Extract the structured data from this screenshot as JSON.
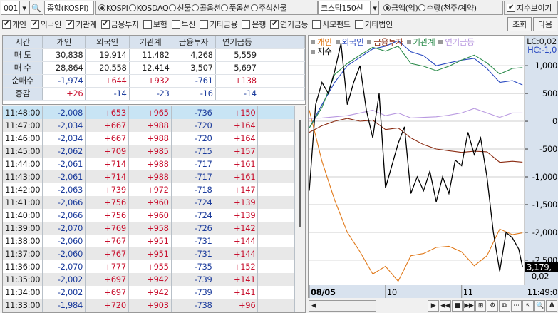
{
  "toolbar": {
    "code": "001",
    "market_name": "종합(KOSPI)",
    "markets": [
      {
        "label": "KOSPI",
        "selected": true
      },
      {
        "label": "KOSDAQ",
        "selected": false
      },
      {
        "label": "선물",
        "selected": false
      },
      {
        "label": "콜옵션",
        "selected": false
      },
      {
        "label": "풋옵션",
        "selected": false
      },
      {
        "label": "주식선물",
        "selected": false
      }
    ],
    "combo_value": "코스닥150선",
    "units": [
      {
        "label": "금액(억)",
        "selected": true
      },
      {
        "label": "수량(천주/계약)",
        "selected": false
      }
    ],
    "show_index": {
      "label": "지수보이기",
      "checked": true
    }
  },
  "filters": [
    {
      "label": "개인",
      "checked": true
    },
    {
      "label": "외국인",
      "checked": true
    },
    {
      "label": "기관계",
      "checked": true
    },
    {
      "label": "금융투자",
      "checked": true
    },
    {
      "label": "보험",
      "checked": false
    },
    {
      "label": "투신",
      "checked": false
    },
    {
      "label": "기타금융",
      "checked": false
    },
    {
      "label": "은행",
      "checked": false
    },
    {
      "label": "연기금등",
      "checked": true
    },
    {
      "label": "사모펀드",
      "checked": false
    },
    {
      "label": "기타법인",
      "checked": false
    }
  ],
  "buttons": {
    "query": "조회",
    "next": "다음"
  },
  "summary": {
    "headers": [
      "시간",
      "개인",
      "외국인",
      "기관계",
      "금융투자",
      "연기금등"
    ],
    "rows": [
      [
        "매 도",
        "30,838",
        "19,914",
        "11,482",
        "4,268",
        "5,559"
      ],
      [
        "매 수",
        "28,864",
        "20,558",
        "12,414",
        "3,507",
        "5,697"
      ],
      [
        "순매수",
        "-1,974",
        "+644",
        "+932",
        "-761",
        "+138"
      ],
      [
        "증감",
        "+26",
        "-14",
        "-23",
        "-16",
        "-14"
      ]
    ]
  },
  "timeseries": [
    [
      "11:48:00",
      "-2,008",
      "+653",
      "+965",
      "-736",
      "+150"
    ],
    [
      "11:47:00",
      "-2,034",
      "+667",
      "+988",
      "-720",
      "+164"
    ],
    [
      "11:46:00",
      "-2,034",
      "+667",
      "+988",
      "-720",
      "+164"
    ],
    [
      "11:45:00",
      "-2,062",
      "+709",
      "+985",
      "-715",
      "+157"
    ],
    [
      "11:44:00",
      "-2,061",
      "+714",
      "+988",
      "-717",
      "+161"
    ],
    [
      "11:43:00",
      "-2,061",
      "+714",
      "+988",
      "-717",
      "+161"
    ],
    [
      "11:42:00",
      "-2,063",
      "+739",
      "+972",
      "-718",
      "+147"
    ],
    [
      "11:41:00",
      "-2,066",
      "+756",
      "+960",
      "-724",
      "+139"
    ],
    [
      "11:40:00",
      "-2,066",
      "+756",
      "+960",
      "-724",
      "+139"
    ],
    [
      "11:39:00",
      "-2,070",
      "+769",
      "+958",
      "-726",
      "+142"
    ],
    [
      "11:38:00",
      "-2,060",
      "+767",
      "+951",
      "-731",
      "+144"
    ],
    [
      "11:37:00",
      "-2,060",
      "+767",
      "+951",
      "-731",
      "+144"
    ],
    [
      "11:36:00",
      "-2,070",
      "+777",
      "+955",
      "-735",
      "+152"
    ],
    [
      "11:35:00",
      "-2,002",
      "+697",
      "+942",
      "-739",
      "+141"
    ],
    [
      "11:34:00",
      "-2,002",
      "+697",
      "+942",
      "-739",
      "+141"
    ],
    [
      "11:33:00",
      "-1,984",
      "+720",
      "+903",
      "-738",
      "+96"
    ]
  ],
  "chart_data": {
    "type": "line",
    "grid": true,
    "legend_placement": "top-left",
    "info": [
      "LC:0,02",
      "HC:-1,0"
    ],
    "ylim": [
      -2950,
      1540
    ],
    "yticks": [
      1000,
      500,
      0,
      -500,
      -1000,
      -1500,
      -2000,
      -2500
    ],
    "ytick_labels": [
      "1,000",
      "500",
      "0",
      "-500",
      "-1,000",
      "-1,500",
      "-2,000",
      "-2,500"
    ],
    "xlim": [
      "09:00",
      "11:49"
    ],
    "xticks": [
      {
        "t": "09:00",
        "label": "08/05"
      },
      {
        "t": "10:00",
        "label": "10"
      },
      {
        "t": "11:00",
        "label": "11"
      }
    ],
    "cursor_time": "11:49:0",
    "index_value": "3,179,",
    "index_change": "-0,02",
    "x": [
      "09:00",
      "09:10",
      "09:20",
      "09:30",
      "09:40",
      "09:50",
      "10:00",
      "10:10",
      "10:20",
      "10:30",
      "10:40",
      "10:50",
      "11:00",
      "11:10",
      "11:20",
      "11:30",
      "11:40",
      "11:48"
    ],
    "series": [
      {
        "name": "개인",
        "color": "#e07818",
        "values": [
          200,
          -720,
          -1420,
          -2000,
          -2350,
          -2750,
          -2610,
          -2880,
          -2420,
          -2380,
          -2270,
          -2250,
          -2350,
          -2600,
          -2420,
          -1940,
          -2040,
          -2008
        ]
      },
      {
        "name": "외국인",
        "color": "#2848c0",
        "values": [
          -120,
          300,
          700,
          1000,
          1150,
          1300,
          1350,
          1450,
          1250,
          1180,
          1000,
          1050,
          1100,
          1130,
          950,
          700,
          730,
          653
        ]
      },
      {
        "name": "금융투자",
        "color": "#8a2a10",
        "values": [
          -200,
          -80,
          0,
          50,
          0,
          20,
          -150,
          -120,
          -300,
          -420,
          -500,
          -530,
          -560,
          -540,
          -550,
          -740,
          -720,
          -736
        ]
      },
      {
        "name": "기관계",
        "color": "#2a8a4a",
        "values": [
          -120,
          250,
          840,
          1040,
          1190,
          1330,
          1260,
          1350,
          1040,
          990,
          910,
          990,
          1100,
          1190,
          1050,
          850,
          950,
          965
        ]
      },
      {
        "name": "연기금등",
        "color": "#b898e0",
        "values": [
          50,
          60,
          80,
          100,
          150,
          200,
          100,
          150,
          60,
          70,
          80,
          110,
          150,
          230,
          150,
          70,
          150,
          150
        ]
      },
      {
        "name": "지수",
        "color": "#000000",
        "x": [
          "09:00",
          "09:05",
          "09:10",
          "09:15",
          "09:20",
          "09:25",
          "09:30",
          "09:35",
          "09:40",
          "09:45",
          "09:50",
          "09:55",
          "10:00",
          "10:05",
          "10:10",
          "10:15",
          "10:20",
          "10:25",
          "10:30",
          "10:35",
          "10:40",
          "10:45",
          "10:50",
          "10:55",
          "11:00",
          "11:05",
          "11:10",
          "11:15",
          "11:20",
          "11:25",
          "11:30",
          "11:35",
          "11:40",
          "11:45",
          "11:48"
        ],
        "values": [
          -1250,
          300,
          700,
          500,
          900,
          1400,
          300,
          700,
          1000,
          200,
          -300,
          500,
          -1200,
          -800,
          -400,
          -100,
          -1300,
          -1000,
          -1250,
          -900,
          -1450,
          -1000,
          -1300,
          -700,
          -800,
          -200,
          -600,
          -300,
          -1000,
          -2000,
          -2700,
          -2000,
          -2100,
          -2300,
          -2620
        ]
      }
    ]
  }
}
